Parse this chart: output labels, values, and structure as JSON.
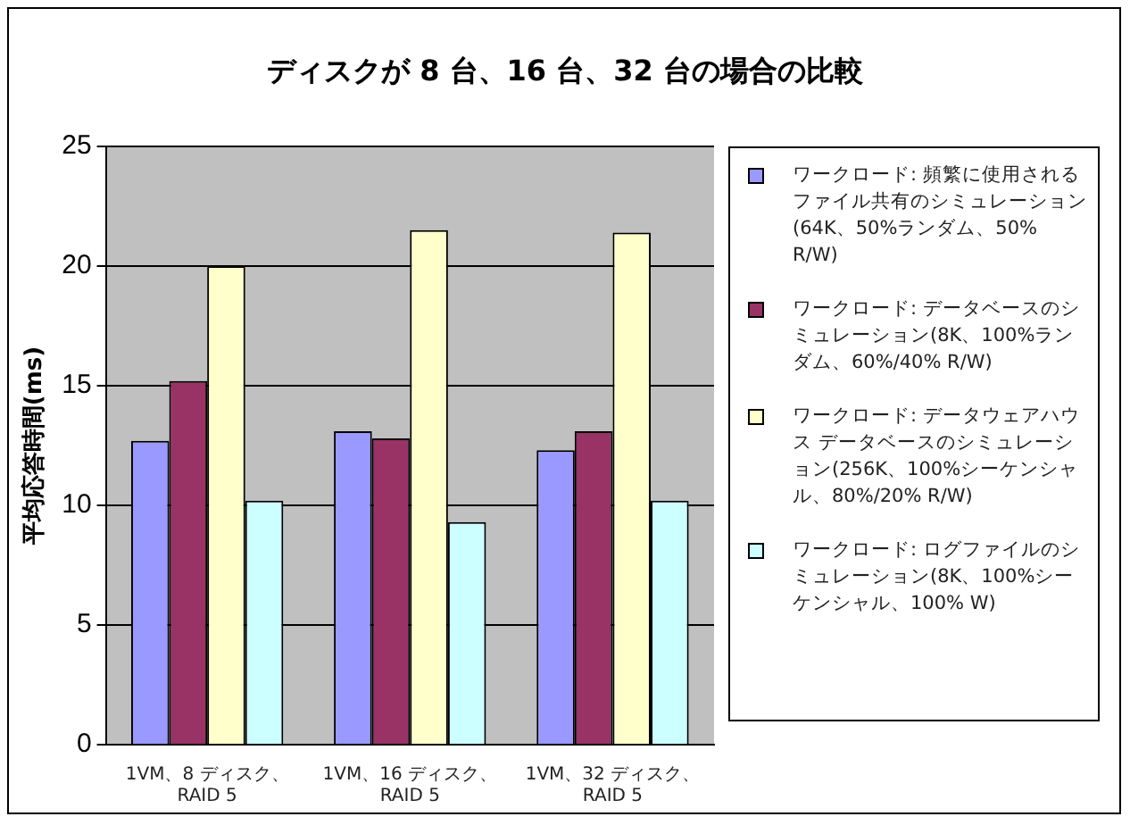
{
  "chart_data": {
    "type": "bar",
    "title": "ディスクが 8 台、16 台、32 台の場合の比較",
    "ylabel": "平均応答時間(ms)",
    "categories": [
      "1VM、8 ディスク、RAID 5",
      "1VM、16 ディスク、RAID 5",
      "1VM、32 ディスク、RAID 5"
    ],
    "series": [
      {
        "name": "ワークロード:  頻繁に使用されるファイル共有のシミュレーション(64K、50%ランダム、50% R/W)",
        "color": "#9999ff",
        "values": [
          12.7,
          13.1,
          12.3
        ]
      },
      {
        "name": "ワークロード: データベースのシミュレーション(8K、100%ランダム、60%/40% R/W)",
        "color": "#993366",
        "values": [
          15.2,
          12.8,
          13.1
        ]
      },
      {
        "name": "ワークロード:  データウェアハウス データベースのシミュレーション(256K、100%シーケンシャル、80%/20% R/W)",
        "color": "#ffffcc",
        "values": [
          20.0,
          21.5,
          21.4
        ]
      },
      {
        "name": "ワークロード: ログファイルのシミュレーション(8K、100%シーケンシャル、100% W)",
        "color": "#ccffff",
        "values": [
          10.2,
          9.3,
          10.2
        ]
      }
    ],
    "ylim": [
      0,
      25
    ],
    "yticks": [
      0,
      5,
      10,
      15,
      20,
      25
    ],
    "grid": "y",
    "legend": "right"
  }
}
